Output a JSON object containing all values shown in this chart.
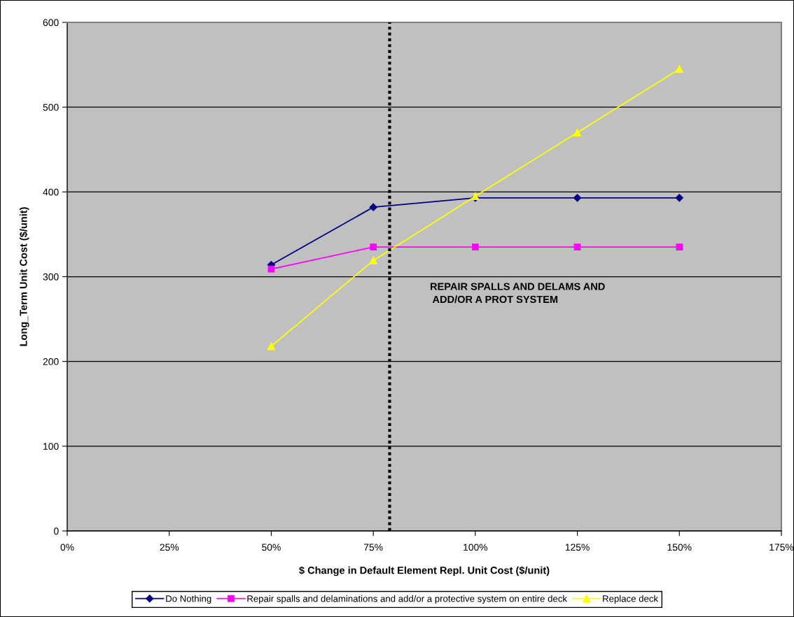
{
  "chart_data": {
    "type": "line",
    "xlabel": "$ Change in Default Element Repl. Unit Cost ($/unit)",
    "ylabel": "Long_Term Unit Cost ($/unit)",
    "x": [
      50,
      75,
      100,
      125,
      150
    ],
    "series": [
      {
        "name": "Do Nothing",
        "color": "#000080",
        "marker": "diamond",
        "values": [
          314,
          382,
          393,
          393,
          393
        ]
      },
      {
        "name": "Repair spalls and delaminations and add/or a protective system on entire deck",
        "color": "#ff00ff",
        "marker": "square",
        "values": [
          309,
          335,
          335,
          335,
          335
        ]
      },
      {
        "name": "Replace deck",
        "color": "#ffff00",
        "marker": "triangle",
        "values": [
          218,
          319,
          395,
          470,
          545
        ]
      }
    ],
    "xlim": [
      0,
      175
    ],
    "xticks": [
      {
        "value": 0,
        "label": "0%"
      },
      {
        "value": 25,
        "label": "25%"
      },
      {
        "value": 50,
        "label": "50%"
      },
      {
        "value": 75,
        "label": "75%"
      },
      {
        "value": 100,
        "label": "100%"
      },
      {
        "value": 125,
        "label": "125%"
      },
      {
        "value": 150,
        "label": "150%"
      },
      {
        "value": 175,
        "label": "175%"
      }
    ],
    "ylim": [
      0,
      600
    ],
    "yticks": [
      0,
      100,
      200,
      300,
      400,
      500,
      600
    ],
    "grid": "y",
    "legend": "bottom",
    "line_style": "solid",
    "ref_lines": [
      {
        "axis": "x",
        "value": 79,
        "color": "#000000",
        "line_style": "dotted"
      }
    ],
    "annotations": [
      "REPAIR SPALLS AND DELAMS AND\n ADD/OR A PROT SYSTEM"
    ]
  }
}
